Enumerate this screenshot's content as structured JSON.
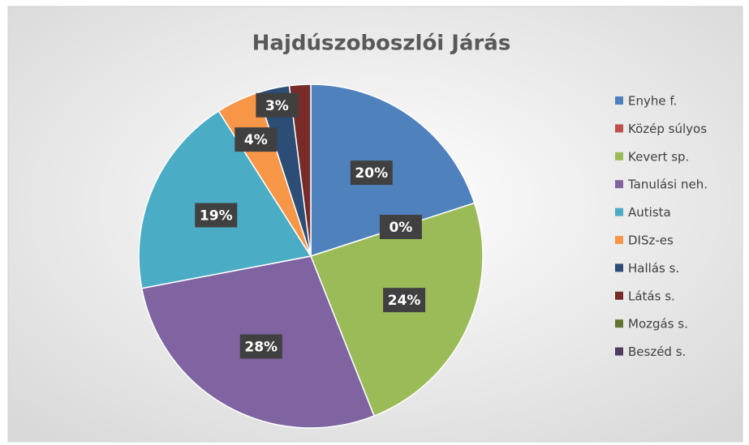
{
  "chart_data": {
    "type": "pie",
    "title": "Hajdúszoboszlói Járás",
    "categories": [
      "Enyhe f.",
      "Közép súlyos",
      "Kevert sp.",
      "Tanulási neh.",
      "Autista",
      "DISz-es",
      "Hallás s.",
      "Látás s.",
      "Mozgás s.",
      "Beszéd s."
    ],
    "values": [
      20,
      0,
      24,
      28,
      19,
      4,
      3,
      2,
      0,
      0
    ],
    "value_labels": [
      "20%",
      "0%",
      "24%",
      "28%",
      "19%",
      "4%",
      "3%",
      null,
      null,
      null
    ],
    "colors": [
      "#4f81bd",
      "#c0504d",
      "#9bbb59",
      "#8064a2",
      "#4bacc6",
      "#f79646",
      "#2c4d75",
      "#772c2a",
      "#5f7530",
      "#4d3b62"
    ],
    "legend": "right"
  }
}
